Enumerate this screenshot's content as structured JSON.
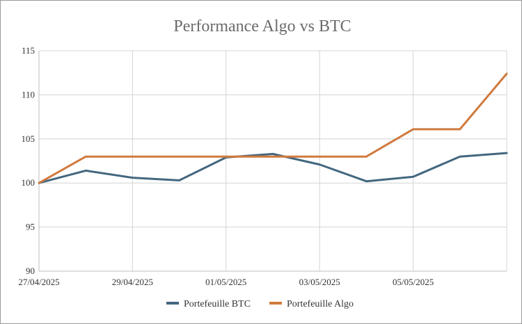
{
  "chart_data": {
    "type": "line",
    "title": "Performance Algo vs BTC",
    "xlabel": "",
    "ylabel": "",
    "x": [
      "27/04/2025",
      "28/04/2025",
      "29/04/2025",
      "30/04/2025",
      "01/05/2025",
      "02/05/2025",
      "03/05/2025",
      "04/05/2025",
      "05/05/2025",
      "06/05/2025",
      "07/05/2025"
    ],
    "x_tick_labels": [
      "27/04/2025",
      "29/04/2025",
      "01/05/2025",
      "03/05/2025",
      "05/05/2025"
    ],
    "y_ticks": [
      90,
      95,
      100,
      105,
      110,
      115
    ],
    "ylim": [
      90,
      115
    ],
    "grid": true,
    "legend_position": "bottom",
    "series": [
      {
        "name": "Portefeuille BTC",
        "color": "#43677f",
        "values": [
          100.0,
          101.4,
          100.6,
          100.3,
          102.9,
          103.3,
          102.1,
          100.2,
          100.7,
          103.0,
          103.4
        ]
      },
      {
        "name": "Portefeuille Algo",
        "color": "#d07a3e",
        "values": [
          100.0,
          103.0,
          103.0,
          103.0,
          103.0,
          103.0,
          103.0,
          103.0,
          106.1,
          106.1,
          112.4
        ]
      }
    ]
  }
}
